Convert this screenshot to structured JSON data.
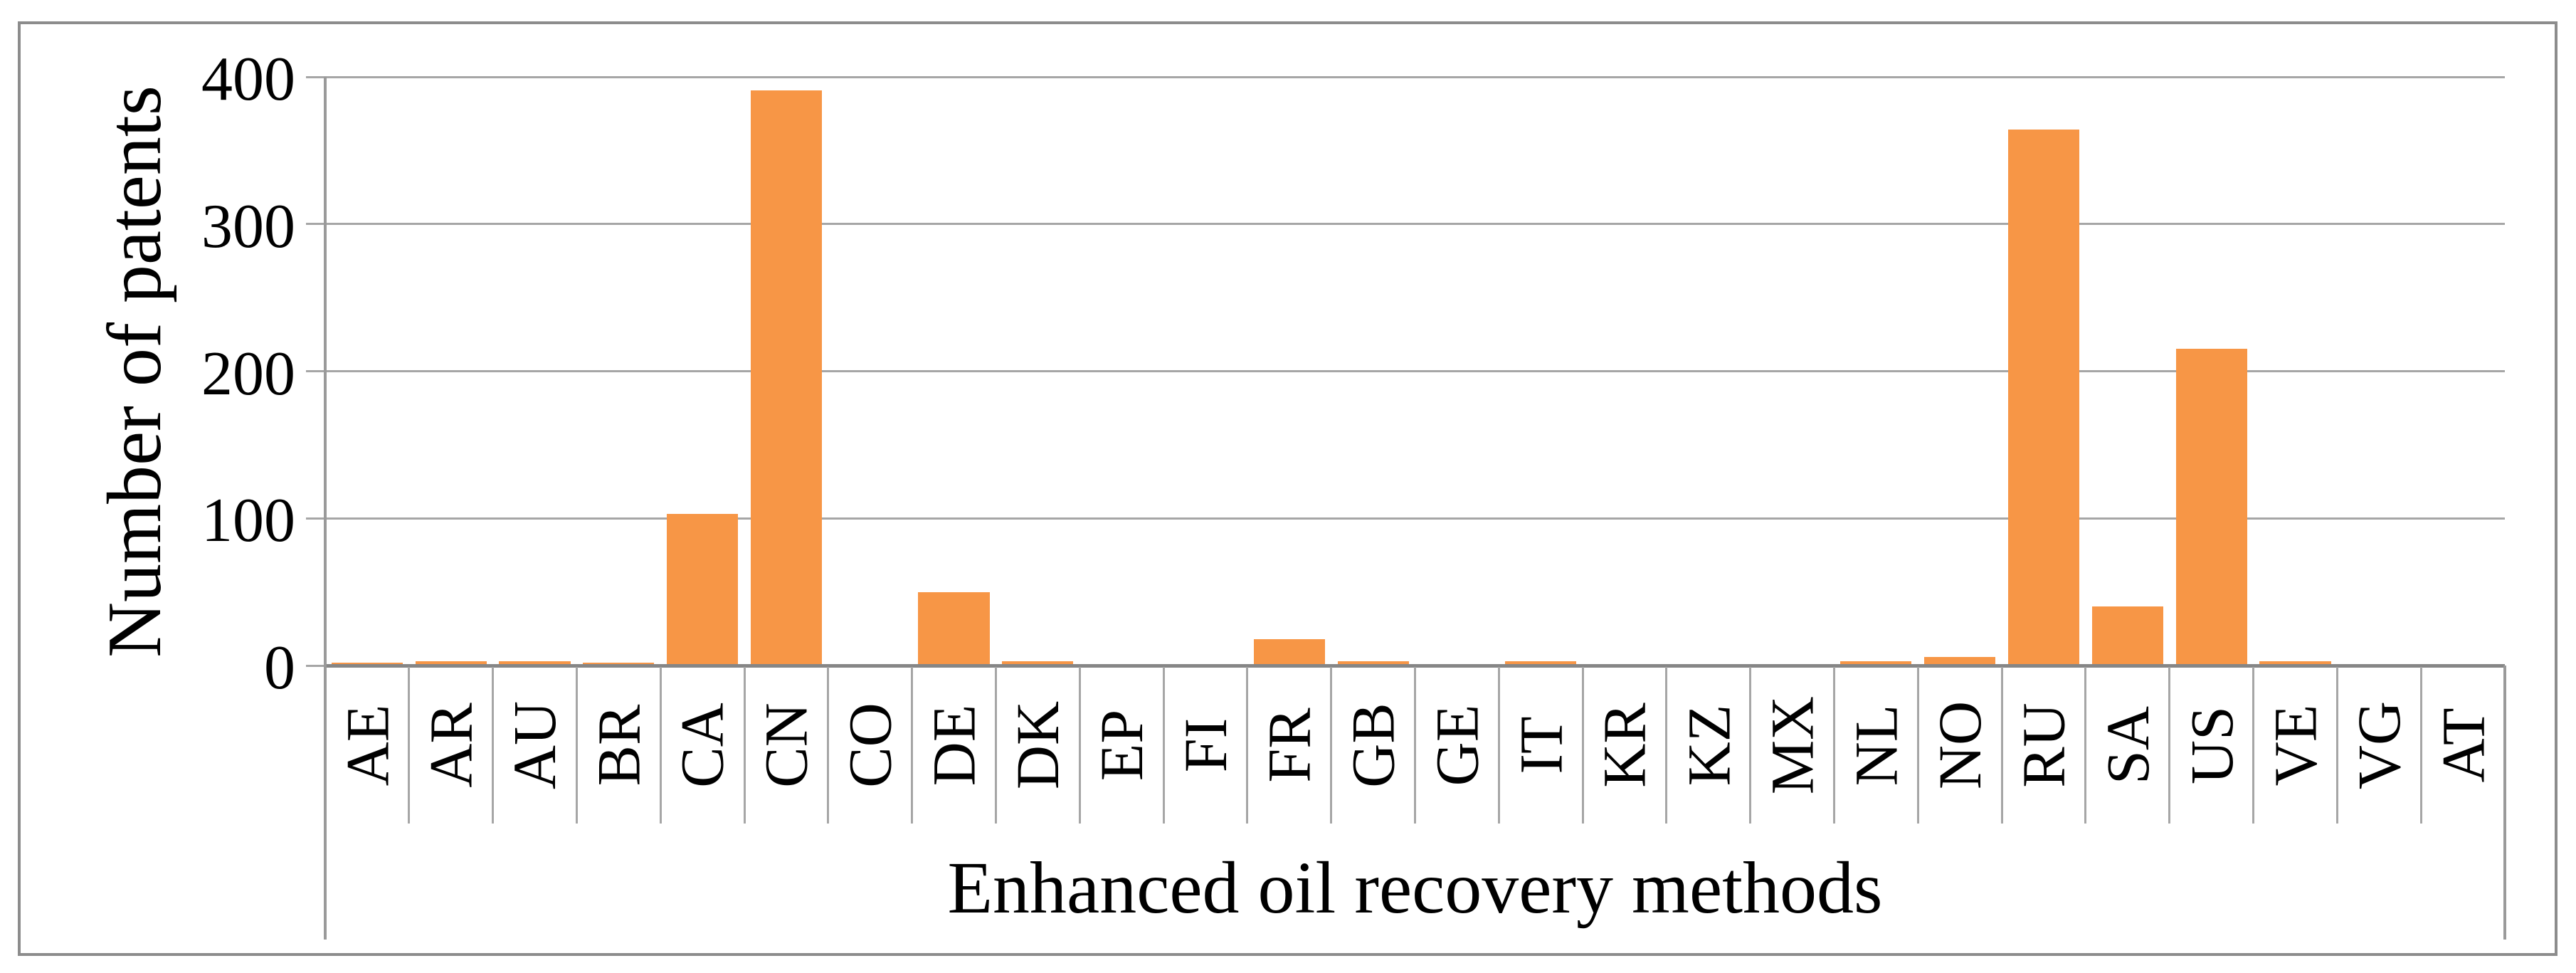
{
  "chart_data": {
    "type": "bar",
    "title": "",
    "xlabel": "Enhanced oil recovery methods",
    "ylabel": "Number of patents",
    "categories": [
      "AE",
      "AR",
      "AU",
      "BR",
      "CA",
      "CN",
      "CO",
      "DE",
      "DK",
      "EP",
      "FI",
      "FR",
      "GB",
      "GE",
      "IT",
      "KR",
      "KZ",
      "MX",
      "NL",
      "NO",
      "RU",
      "SA",
      "US",
      "VE",
      "VG",
      "AT"
    ],
    "values": [
      2,
      3,
      3,
      2,
      103,
      391,
      1,
      50,
      3,
      1,
      1,
      18,
      3,
      1,
      3,
      1,
      1,
      1,
      3,
      6,
      364,
      40,
      215,
      3,
      1,
      1
    ],
    "yticks": [
      0,
      100,
      200,
      300,
      400
    ],
    "ylim": [
      0,
      400
    ],
    "grid": true,
    "legend": false,
    "bar_color": "#f79646",
    "gridline_color": "#a6a6a6",
    "axis_color": "#868686",
    "border_color": "#8c8c8c"
  }
}
